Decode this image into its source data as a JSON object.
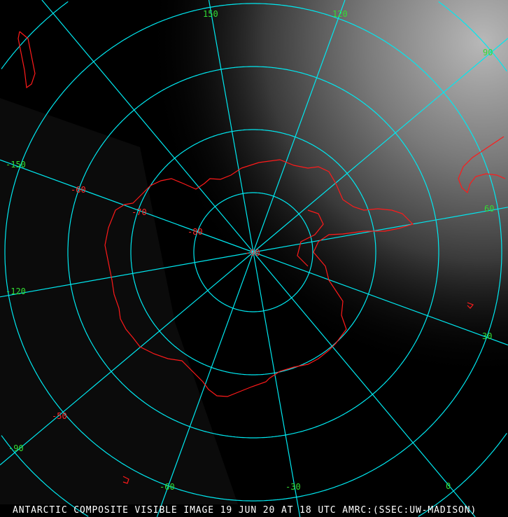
{
  "caption": "ANTARCTIC COMPOSITE VISIBLE IMAGE 19 JUN 20 AT 18 UTC AMRC:(SSEC:UW-MADISON)",
  "map": {
    "projection": "polar stereographic (south pole)",
    "colors": {
      "graticule": "#00e8f0",
      "longitude_labels": "#33dd33",
      "latitude_labels": "#ff2a2a",
      "coastline": "#ff1a1a"
    },
    "longitude_labels": [
      "150",
      "120",
      "90",
      "60",
      "30",
      "0",
      "-30",
      "-60",
      "-90",
      "-120",
      "-150"
    ],
    "latitude_labels": [
      "-90",
      "-80",
      "-70",
      "-60",
      "-50"
    ]
  }
}
